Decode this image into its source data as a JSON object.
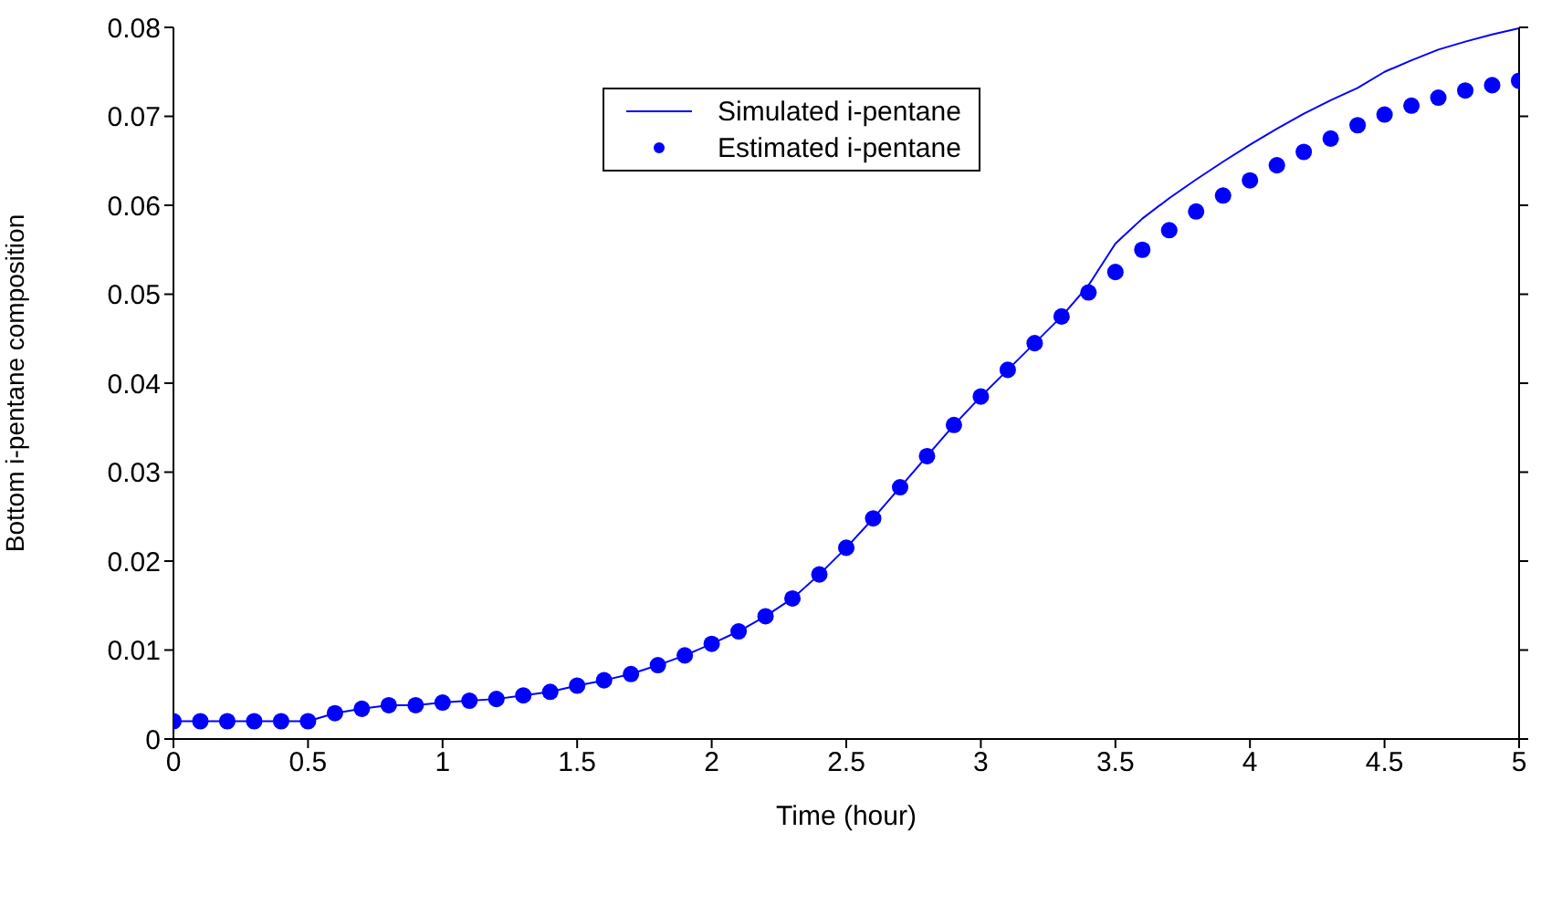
{
  "chart_data": {
    "type": "line",
    "xlabel": "Time (hour)",
    "ylabel": "Bottom i-pentane composition",
    "xlim": [
      0,
      5
    ],
    "xticks": [
      0,
      0.5,
      1,
      1.5,
      2,
      2.5,
      3,
      3.5,
      4,
      4.5,
      5
    ],
    "ylim": [
      0,
      0.08
    ],
    "yticks": [
      0,
      0.01,
      0.02,
      0.03,
      0.04,
      0.05,
      0.06,
      0.07,
      0.08
    ],
    "grid": false,
    "legend": "top",
    "x": [
      0,
      0.1,
      0.2,
      0.3,
      0.4,
      0.5,
      0.6,
      0.7,
      0.8,
      0.9,
      1,
      1.1,
      1.2,
      1.3,
      1.4,
      1.5,
      1.6,
      1.7,
      1.8,
      1.9,
      2,
      2.1,
      2.2,
      2.3,
      2.4,
      2.5,
      2.6,
      2.7,
      2.8,
      2.9,
      3,
      3.1,
      3.2,
      3.3,
      3.4,
      3.5,
      3.6,
      3.7,
      3.8,
      3.9,
      4,
      4.1,
      4.2,
      4.3,
      4.4,
      4.5,
      4.6,
      4.7,
      4.8,
      4.9,
      5
    ],
    "series": [
      {
        "name": "Simulated i-pentane",
        "color": "#0000ff",
        "marker": "none",
        "line_style": "solid",
        "values": [
          0.002,
          0.002,
          0.002,
          0.002,
          0.002,
          0.002,
          0.0029,
          0.0034,
          0.0038,
          0.0038,
          0.0041,
          0.0043,
          0.0045,
          0.0049,
          0.0053,
          0.006,
          0.0066,
          0.0073,
          0.0083,
          0.0094,
          0.0107,
          0.0121,
          0.0138,
          0.0158,
          0.0185,
          0.0215,
          0.0248,
          0.0283,
          0.0318,
          0.0353,
          0.0385,
          0.0415,
          0.0445,
          0.0475,
          0.051,
          0.0557,
          0.0585,
          0.0608,
          0.0629,
          0.0649,
          0.0668,
          0.0686,
          0.0703,
          0.0718,
          0.0732,
          0.075,
          0.0763,
          0.0775,
          0.0784,
          0.0792,
          0.0799
        ]
      },
      {
        "name": "Estimated i-pentane",
        "color": "#0000ff",
        "type": "scatter",
        "marker": "circle",
        "values": [
          0.002,
          0.002,
          0.002,
          0.002,
          0.002,
          0.002,
          0.0029,
          0.0034,
          0.0038,
          0.0038,
          0.0041,
          0.0043,
          0.0045,
          0.0049,
          0.0053,
          0.006,
          0.0066,
          0.0073,
          0.0083,
          0.0094,
          0.0107,
          0.0121,
          0.0138,
          0.0158,
          0.0185,
          0.0215,
          0.0248,
          0.0283,
          0.0318,
          0.0353,
          0.0385,
          0.0415,
          0.0445,
          0.0475,
          0.0502,
          0.0525,
          0.055,
          0.0572,
          0.0593,
          0.0611,
          0.0628,
          0.0645,
          0.066,
          0.0675,
          0.069,
          0.0702,
          0.0712,
          0.0721,
          0.0729,
          0.0735,
          0.074
        ]
      }
    ]
  }
}
